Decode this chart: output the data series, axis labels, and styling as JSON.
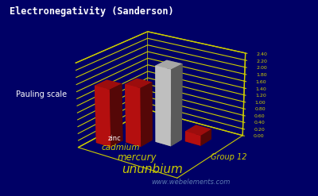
{
  "title": "Electronegativity (Sanderson)",
  "ylabel": "Pauling scale",
  "group_label": "Group 12",
  "watermark": "www.webelements.com",
  "elements": [
    "zinc",
    "cadmium",
    "mercury",
    "ununbium"
  ],
  "values": [
    1.66,
    1.69,
    2.2,
    0.3
  ],
  "bar_colors": [
    "#cc1111",
    "#cc1111",
    "#d8d8d8",
    "#cc1111"
  ],
  "background_color": "#000066",
  "axis_color": "#cccc00",
  "text_color_title": "#ffffff",
  "text_color_yellow": "#cccc00",
  "text_color_white": "#ffffff",
  "ylim": [
    0.0,
    2.4
  ],
  "yticks": [
    0.0,
    0.2,
    0.4,
    0.6,
    0.8,
    1.0,
    1.2,
    1.4,
    1.6,
    1.8,
    2.0,
    2.2,
    2.4
  ],
  "figsize": [
    4.0,
    2.47
  ],
  "dpi": 100
}
